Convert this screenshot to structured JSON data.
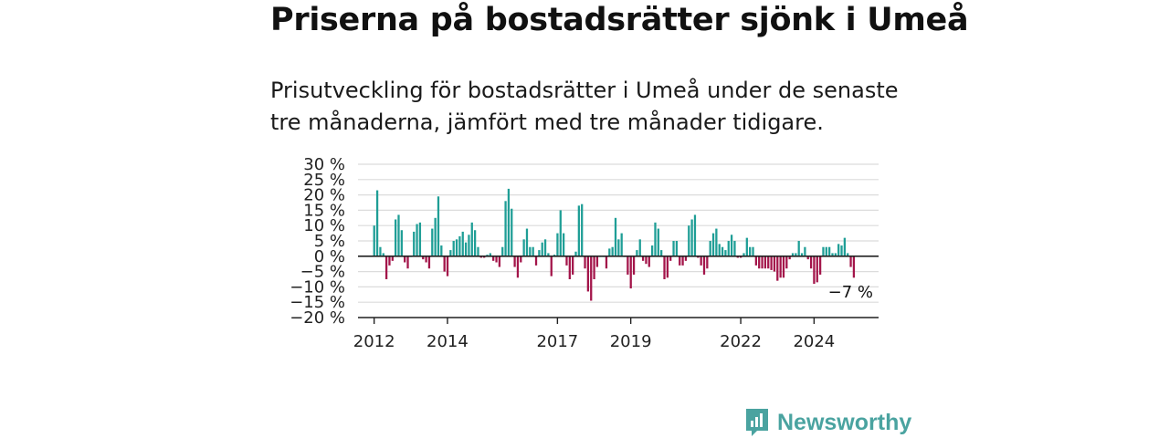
{
  "title": "Priserna på bostadsrätter sjönk i Umeå",
  "subtitle": "Prisutveckling för bostadsrätter i Umeå under de senaste tre månaderna, jämfört med tre månader tidigare.",
  "brand": {
    "name": "Newsworthy",
    "icon": "newsworthy-logo-icon",
    "color": "#4aa3a0"
  },
  "chart_data": {
    "type": "bar",
    "unit": "%",
    "ylim": [
      -20,
      30
    ],
    "yticks": [
      30,
      25,
      20,
      15,
      10,
      5,
      0,
      -5,
      -10,
      -15,
      -20
    ],
    "ytick_labels": [
      "30 %",
      "25 %",
      "20 %",
      "15 %",
      "10 %",
      "5 %",
      "0 %",
      "−5 %",
      "−10 %",
      "−15 %",
      "−20 %"
    ],
    "xlim": [
      2011.6,
      2025.8
    ],
    "xticks": [
      2012,
      2014,
      2017,
      2019,
      2022,
      2024
    ],
    "xtick_labels": [
      "2012",
      "2014",
      "2017",
      "2019",
      "2022",
      "2024"
    ],
    "grid": true,
    "positive_color": "#1f9e96",
    "negative_color": "#a3154a",
    "annotation": "−7 %",
    "start": "2012-01",
    "interval": "month",
    "values": [
      10,
      21.5,
      3,
      1,
      -7.5,
      -3,
      -1.5,
      12,
      13.5,
      8.5,
      -2,
      -4,
      0,
      8,
      10.5,
      11,
      -1,
      -2,
      -4,
      9,
      12.5,
      19.5,
      3.5,
      -5,
      -6.5,
      2,
      5,
      5.5,
      6.5,
      8,
      4.5,
      7,
      11,
      8.5,
      3,
      -0.5,
      -0.5,
      0.5,
      1,
      -1.5,
      -2,
      -3.5,
      3,
      18,
      22,
      15.5,
      -3.5,
      -7,
      -2,
      5.5,
      9,
      3,
      3,
      -3,
      2,
      4.5,
      5.5,
      1,
      -6.5,
      0.5,
      7.5,
      15,
      7.5,
      -3,
      -7.5,
      -6,
      1.5,
      16.5,
      17,
      -4,
      -11.5,
      -14.5,
      -7.5,
      -3.5,
      0,
      0,
      -4,
      2.5,
      3,
      12.5,
      5.5,
      7.5,
      0,
      -6,
      -10.5,
      -6,
      2,
      5.5,
      -1.5,
      -2.5,
      -3.5,
      3.5,
      11,
      9,
      2,
      -7.5,
      -7,
      -1.5,
      5,
      5,
      -3,
      -3,
      -1.5,
      10,
      12,
      13.5,
      -0.5,
      -3,
      -6,
      -4,
      5,
      7.5,
      9,
      4,
      3,
      2,
      5,
      7,
      5,
      -0.5,
      -0.5,
      1,
      6,
      3,
      3,
      -3,
      -4,
      -4,
      -4,
      -4,
      -4.5,
      -5,
      -8,
      -7,
      -7,
      -4,
      -1,
      1,
      1,
      5,
      1,
      3,
      -1,
      -4,
      -9,
      -8.5,
      -6,
      3,
      3,
      3,
      1,
      1,
      4,
      3.5,
      6,
      1,
      -3.5,
      -7
    ]
  }
}
